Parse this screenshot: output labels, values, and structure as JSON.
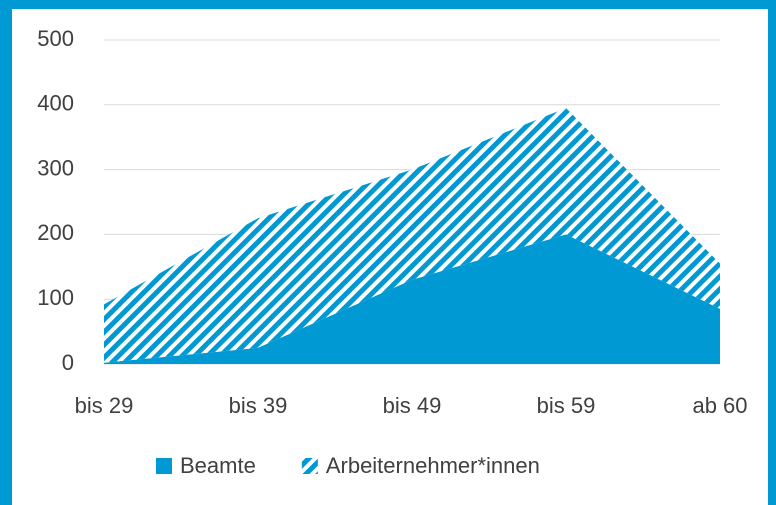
{
  "chart_data": {
    "type": "area",
    "stacked": true,
    "categories": [
      "bis 29",
      "bis 39",
      "bis 49",
      "bis 59",
      "ab 60"
    ],
    "series": [
      {
        "name": "Beamte",
        "color": "#0099d4",
        "pattern": "solid",
        "values": [
          2,
          25,
          130,
          200,
          85
        ]
      },
      {
        "name": "Arbeiternehmer*innen",
        "color": "#0099d4",
        "pattern": "hatch",
        "values": [
          90,
          200,
          170,
          195,
          70
        ]
      }
    ],
    "ylim": [
      0,
      500
    ],
    "yticks": [
      0,
      100,
      200,
      300,
      400,
      500
    ],
    "grid": true,
    "legend": "bottom"
  }
}
